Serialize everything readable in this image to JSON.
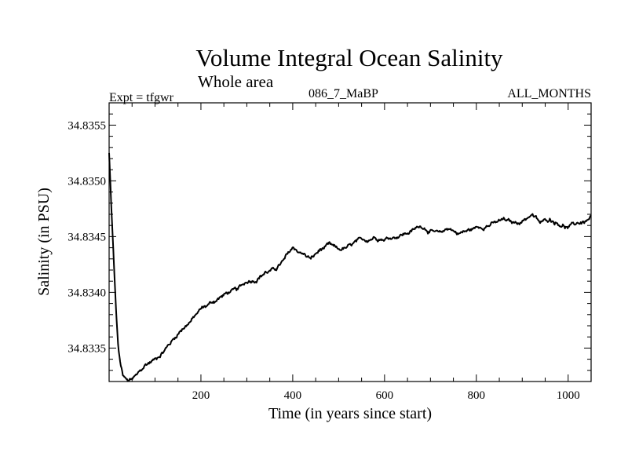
{
  "chart_data": {
    "type": "line",
    "title": "Volume Integral Ocean Salinity",
    "subtitle": "Whole area",
    "experiment_label": "Expt = tfgwr",
    "center_label": "086_7_MaBP",
    "right_label": "ALL_MONTHS",
    "xlabel": "Time (in years since start)",
    "ylabel": "Salinity (in PSU)",
    "xlim": [
      0,
      1050
    ],
    "ylim": [
      34.8332,
      34.8357
    ],
    "xticks": [
      200,
      400,
      600,
      800,
      1000
    ],
    "yticks": [
      34.8335,
      34.834,
      34.8345,
      34.835,
      34.8355
    ],
    "xtick_labels": [
      "200",
      "400",
      "600",
      "800",
      "1000"
    ],
    "ytick_labels": [
      "34.8335",
      "34.8340",
      "34.8345",
      "34.8350",
      "34.8355"
    ],
    "grid": false,
    "series": [
      {
        "name": "Salinity",
        "x": [
          0,
          5,
          10,
          15,
          20,
          25,
          30,
          40,
          50,
          60,
          70,
          80,
          100,
          120,
          140,
          160,
          180,
          200,
          220,
          240,
          260,
          280,
          300,
          320,
          340,
          360,
          380,
          400,
          420,
          440,
          460,
          480,
          500,
          520,
          540,
          560,
          580,
          600,
          620,
          640,
          660,
          680,
          700,
          720,
          740,
          760,
          780,
          800,
          820,
          840,
          860,
          880,
          900,
          920,
          940,
          960,
          980,
          1000,
          1020,
          1040,
          1050
        ],
        "values": [
          34.83525,
          34.83475,
          34.8343,
          34.83385,
          34.8335,
          34.83335,
          34.83325,
          34.8332,
          34.83322,
          34.83325,
          34.8333,
          34.83335,
          34.8334,
          34.83348,
          34.83358,
          34.83368,
          34.83375,
          34.83385,
          34.8339,
          34.83395,
          34.834,
          34.83402,
          34.8341,
          34.83412,
          34.83418,
          34.8342,
          34.83428,
          34.8344,
          34.83435,
          34.8343,
          34.83438,
          34.83442,
          34.83438,
          34.8344,
          34.83445,
          34.83447,
          34.8345,
          34.83448,
          34.8345,
          34.83452,
          34.83455,
          34.8346,
          34.83455,
          34.83452,
          34.83458,
          34.83453,
          34.83455,
          34.83458,
          34.8346,
          34.83462,
          34.83465,
          34.83462,
          34.83464,
          34.8347,
          34.83462,
          34.83466,
          34.83462,
          34.83458,
          34.83462,
          34.83464,
          34.83467
        ]
      }
    ]
  }
}
